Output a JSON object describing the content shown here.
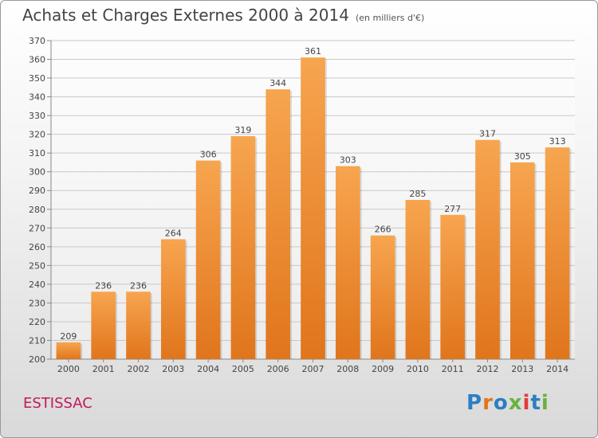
{
  "header": {
    "title": "Achats et Charges Externes 2000 à 2014",
    "subtitle": "(en milliers d'€)"
  },
  "footer": {
    "place": "ESTISSAC",
    "brand": "Proxiti"
  },
  "colors": {
    "bar_top": "#f7a54f",
    "bar_bottom": "#e0751c",
    "place": "#c2185b",
    "brand_letters": [
      "#2b7fc2",
      "#e0751c",
      "#2b7fc2",
      "#6ab23e",
      "#e23b3b",
      "#2b7fc2",
      "#6ab23e"
    ]
  },
  "chart_data": {
    "type": "bar",
    "title": "Achats et Charges Externes 2000 à 2014",
    "subtitle": "(en milliers d'€)",
    "categories": [
      "2000",
      "2001",
      "2002",
      "2003",
      "2004",
      "2005",
      "2006",
      "2007",
      "2008",
      "2009",
      "2010",
      "2011",
      "2012",
      "2013",
      "2014"
    ],
    "values": [
      209,
      236,
      236,
      264,
      306,
      319,
      344,
      361,
      303,
      266,
      285,
      277,
      317,
      305,
      313
    ],
    "ylim": [
      200,
      370
    ],
    "yticks": [
      200,
      210,
      220,
      230,
      240,
      250,
      260,
      270,
      280,
      290,
      300,
      310,
      320,
      330,
      340,
      350,
      360,
      370
    ],
    "grid": true,
    "legend": "none"
  }
}
